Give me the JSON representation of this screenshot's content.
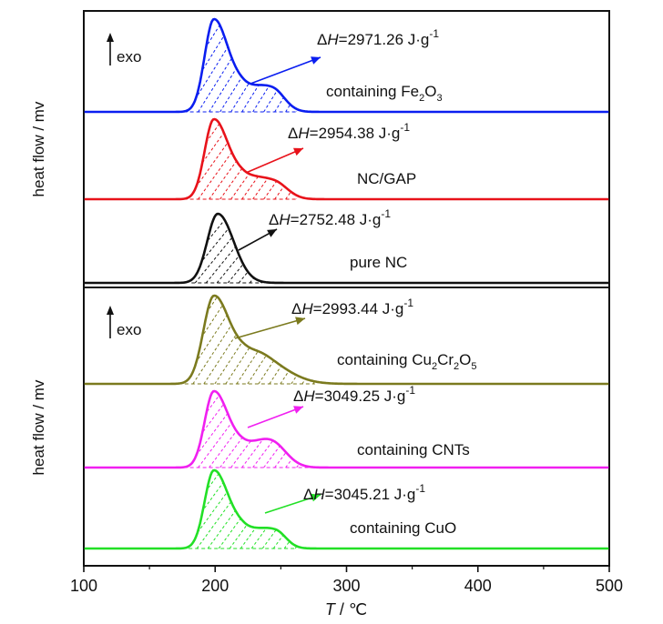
{
  "chart_data": {
    "type": "line",
    "x_axis": {
      "label_var": "T",
      "label_unit": " / ℃",
      "range": [
        100,
        500
      ],
      "ticks": [
        100,
        200,
        300,
        400,
        500
      ]
    },
    "panels": [
      {
        "ylabel": "heat flow / mv",
        "exo_label": "exo",
        "series": [
          {
            "name": "containing Fe2O3",
            "label_main": "containing Fe",
            "label_sub1": "2",
            "label_mid": "O",
            "label_sub2": "3",
            "label_end": "",
            "color": "#0a1ef0",
            "dh_prefix": "Δ",
            "dh_var": "H",
            "dh_value": "=2971.26 J·g",
            "dh_exp": "-1",
            "peaks": [
              {
                "center": 199,
                "sigma_left": 7,
                "sigma_right": 11,
                "amp": 1.0
              },
              {
                "center": 244,
                "sigma_left": 12,
                "sigma_right": 9,
                "amp": 0.22
              },
              {
                "center": 222,
                "sigma_left": 9,
                "sigma_right": 13,
                "amp": 0.2
              }
            ],
            "onset": 176,
            "end": 262
          },
          {
            "name": "NC/GAP",
            "label_main": "NC/GAP",
            "label_sub1": "",
            "label_mid": "",
            "label_sub2": "",
            "label_end": "",
            "color": "#e8121a",
            "dh_prefix": "Δ",
            "dh_var": "H",
            "dh_value": "=2954.38 J·g",
            "dh_exp": "-1",
            "peaks": [
              {
                "center": 199,
                "sigma_left": 7,
                "sigma_right": 11,
                "amp": 1.0
              },
              {
                "center": 245,
                "sigma_left": 14,
                "sigma_right": 10,
                "amp": 0.2
              },
              {
                "center": 222,
                "sigma_left": 9,
                "sigma_right": 13,
                "amp": 0.2
              }
            ],
            "onset": 176,
            "end": 262
          },
          {
            "name": "pure NC",
            "label_main": "pure NC",
            "label_sub1": "",
            "label_mid": "",
            "label_sub2": "",
            "label_end": "",
            "color": "#111111",
            "dh_prefix": "Δ",
            "dh_var": "H",
            "dh_value": "=2752.48 J·g",
            "dh_exp": "-1",
            "peaks": [
              {
                "center": 202,
                "sigma_left": 8,
                "sigma_right": 12,
                "amp": 1.0
              }
            ],
            "onset": 182,
            "end": 236
          }
        ]
      },
      {
        "ylabel": "heat flow / mv",
        "exo_label": "exo",
        "series": [
          {
            "name": "containing Cu2Cr2O5",
            "label_main": "containing Cu",
            "label_sub1": "2",
            "label_mid": "Cr",
            "label_sub2": "2",
            "label_end": "O",
            "label_sub3": "5",
            "color": "#7b7a1e",
            "dh_prefix": "Δ",
            "dh_var": "H",
            "dh_value": "=2993.44 J·g",
            "dh_exp": "-1",
            "peaks": [
              {
                "center": 199,
                "sigma_left": 8,
                "sigma_right": 12,
                "amp": 1.0
              },
              {
                "center": 240,
                "sigma_left": 14,
                "sigma_right": 18,
                "amp": 0.2
              },
              {
                "center": 224,
                "sigma_left": 10,
                "sigma_right": 14,
                "amp": 0.22
              }
            ],
            "onset": 172,
            "end": 276
          },
          {
            "name": "containing CNTs",
            "label_main": "containing CNTs",
            "label_sub1": "",
            "label_mid": "",
            "label_sub2": "",
            "label_end": "",
            "color": "#f01ff0",
            "dh_prefix": "Δ",
            "dh_var": "H",
            "dh_value": "=3049.25 J·g",
            "dh_exp": "-1",
            "peaks": [
              {
                "center": 199,
                "sigma_left": 7,
                "sigma_right": 11,
                "amp": 1.0
              },
              {
                "center": 243,
                "sigma_left": 12,
                "sigma_right": 11,
                "amp": 0.32
              },
              {
                "center": 222,
                "sigma_left": 9,
                "sigma_right": 12,
                "amp": 0.2
              }
            ],
            "onset": 176,
            "end": 272
          },
          {
            "name": "containing CuO",
            "label_main": "containing CuO",
            "label_sub1": "",
            "label_mid": "",
            "label_sub2": "",
            "label_end": "",
            "color": "#22e026",
            "dh_prefix": "Δ",
            "dh_var": "H",
            "dh_value": "=3045.21 J·g",
            "dh_exp": "-1",
            "peaks": [
              {
                "center": 199,
                "sigma_left": 7,
                "sigma_right": 11,
                "amp": 1.0
              },
              {
                "center": 246,
                "sigma_left": 12,
                "sigma_right": 8,
                "amp": 0.2
              },
              {
                "center": 222,
                "sigma_left": 9,
                "sigma_right": 14,
                "amp": 0.2
              }
            ],
            "onset": 175,
            "end": 262
          }
        ]
      }
    ],
    "grid": false,
    "legend": "none"
  }
}
